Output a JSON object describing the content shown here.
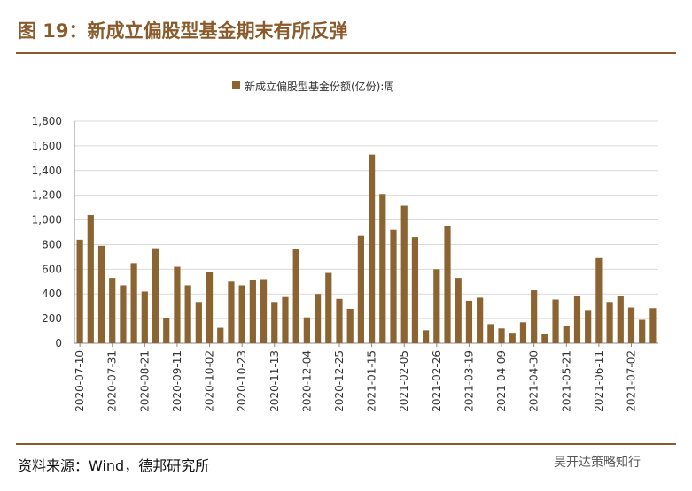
{
  "title": "图 19：新成立偏股型基金期末有所反弹",
  "source": "资料来源：Wind，德邦研究所",
  "watermark": "吴开达策略知行",
  "chart_data": {
    "type": "bar",
    "series": [
      {
        "name": "新成立偏股型基金份额(亿份):周",
        "color": "#8b6431",
        "values": [
          840,
          1040,
          790,
          530,
          470,
          650,
          420,
          770,
          205,
          620,
          470,
          335,
          580,
          125,
          500,
          470,
          510,
          520,
          335,
          375,
          760,
          210,
          400,
          570,
          360,
          280,
          870,
          1530,
          1210,
          920,
          1115,
          860,
          105,
          600,
          950,
          530,
          345,
          370,
          155,
          120,
          85,
          170,
          430,
          75,
          355,
          140,
          380,
          270,
          690,
          335,
          380,
          290,
          190,
          285
        ]
      }
    ],
    "categories": [
      "2020-07-10",
      null,
      null,
      "2020-07-31",
      null,
      null,
      "2020-08-21",
      null,
      null,
      "2020-09-11",
      null,
      null,
      "2020-10-02",
      null,
      null,
      "2020-10-23",
      null,
      null,
      "2020-11-13",
      null,
      null,
      "2020-12-04",
      null,
      null,
      "2020-12-25",
      null,
      null,
      "2021-01-15",
      null,
      null,
      "2021-02-05",
      null,
      null,
      "2021-02-26",
      null,
      null,
      "2021-03-19",
      null,
      null,
      "2021-04-09",
      null,
      null,
      "2021-04-30",
      null,
      null,
      "2021-05-21",
      null,
      null,
      "2021-06-11",
      null,
      null,
      "2021-07-02",
      null,
      null
    ],
    "ylim": [
      0,
      1800
    ],
    "yticks": [
      0,
      200,
      400,
      600,
      800,
      {
        "value": 1000,
        "label": "1,000"
      },
      {
        "value": 1200,
        "label": "1,200"
      },
      {
        "value": 1400,
        "label": "1,400"
      },
      {
        "value": 1600,
        "label": "1,600"
      },
      {
        "value": 1800,
        "label": "1,800"
      }
    ],
    "grid": true,
    "legend": "top"
  }
}
